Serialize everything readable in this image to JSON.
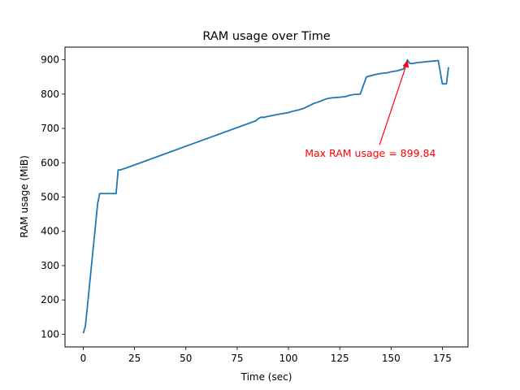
{
  "chart_data": {
    "type": "line",
    "title": "RAM usage over Time",
    "xlabel": "Time (sec)",
    "ylabel": "RAM usage (MiB)",
    "xlim": [
      -8.9,
      187.5
    ],
    "ylim": [
      63,
      937
    ],
    "xticks": [
      0,
      25,
      50,
      75,
      100,
      125,
      150,
      175
    ],
    "yticks": [
      100,
      200,
      300,
      400,
      500,
      600,
      700,
      800,
      900
    ],
    "grid": false,
    "line_color": "#1f77b4",
    "series": [
      {
        "x": [
          0,
          1,
          2,
          3,
          4,
          5,
          6,
          7,
          8,
          9,
          10,
          11,
          12,
          13,
          14,
          15,
          16,
          17,
          18,
          19,
          20,
          21,
          22,
          84,
          85,
          86,
          87,
          88,
          90,
          95,
          100,
          102,
          105,
          108,
          110,
          112,
          115,
          117,
          119,
          121,
          123,
          125,
          128,
          130,
          132,
          135,
          138,
          139,
          141,
          143,
          145,
          148,
          150,
          153,
          156,
          158,
          159,
          160,
          163,
          165,
          168,
          170,
          173,
          175,
          177,
          178
        ],
        "y": [
          103,
          122,
          180,
          240,
          300,
          360,
          420,
          480,
          510,
          510,
          510,
          510,
          510,
          510,
          510,
          510,
          510,
          579,
          579,
          581,
          583,
          585,
          587,
          722,
          727,
          731,
          733,
          732,
          735,
          741,
          746,
          750,
          754,
          760,
          766,
          772,
          778,
          783,
          787,
          789,
          790,
          791,
          793,
          797,
          799,
          800,
          850,
          852,
          855,
          858,
          860,
          862,
          865,
          868,
          873,
          899.84,
          890,
          889,
          892,
          893,
          895,
          896,
          898,
          830,
          830,
          878
        ]
      }
    ],
    "annotation": {
      "text": "Max RAM usage = 899.84",
      "point": [
        158,
        899.84
      ],
      "text_at": [
        108,
        605
      ],
      "color": "#ff0000"
    }
  }
}
